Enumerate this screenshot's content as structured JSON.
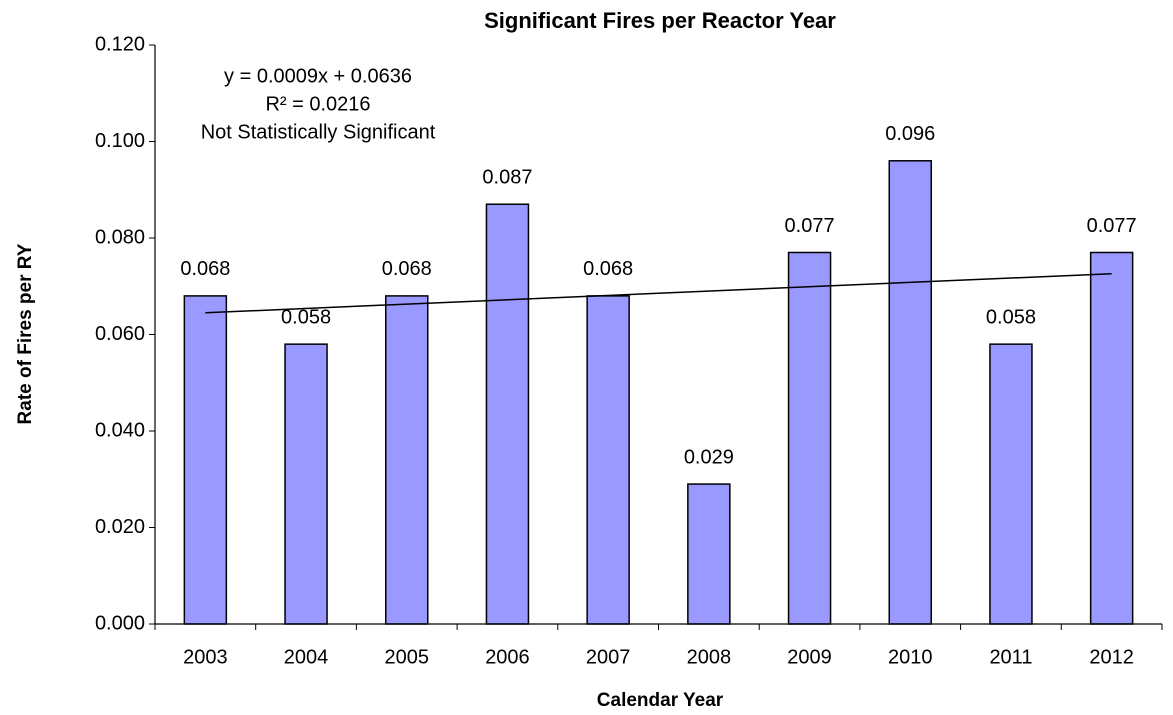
{
  "chart_data": {
    "type": "bar",
    "title": "Significant Fires per Reactor Year",
    "x_label": "Calendar Year",
    "y_label": "Rate of Fires per RY",
    "categories": [
      "2003",
      "2004",
      "2005",
      "2006",
      "2007",
      "2008",
      "2009",
      "2010",
      "2011",
      "2012"
    ],
    "values": [
      0.068,
      0.058,
      0.068,
      0.087,
      0.068,
      0.029,
      0.077,
      0.096,
      0.058,
      0.077
    ],
    "color": "#9999ff",
    "ylim": [
      0,
      0.12
    ],
    "yticks": [
      {
        "value": 0,
        "label": "0.000"
      },
      {
        "value": 0.02,
        "label": "0.020"
      },
      {
        "value": 0.04,
        "label": "0.040"
      },
      {
        "value": 0.06,
        "label": "0.060"
      },
      {
        "value": 0.08,
        "label": "0.080"
      },
      {
        "value": 0.1,
        "label": "0.100"
      },
      {
        "value": 0.12,
        "label": "0.120"
      }
    ],
    "grid": false,
    "trendline": {
      "values": [
        0.0645,
        0.0726
      ]
    },
    "annotations": [
      "y = 0.0009x + 0.0636",
      "R² = 0.0216",
      "Not Statistically Significant"
    ]
  }
}
